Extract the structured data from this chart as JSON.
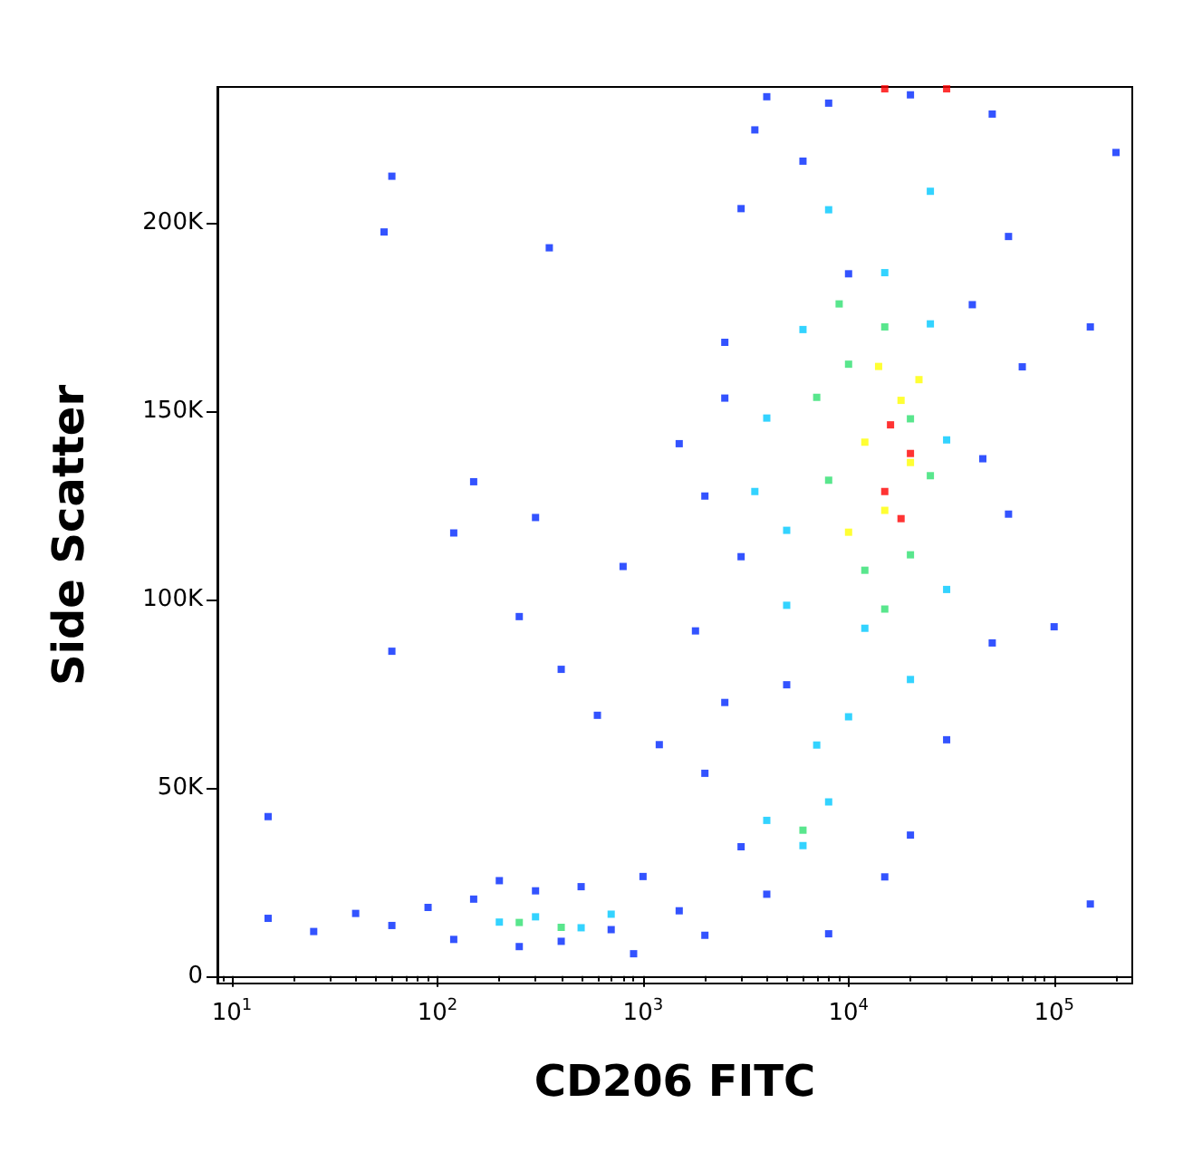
{
  "chart_data": {
    "type": "scatter",
    "xlabel": "CD206 FITC",
    "ylabel": "Side Scatter",
    "log": "x",
    "marker": "square",
    "xlim": [
      8.5,
      240000
    ],
    "xticks": [
      {
        "value": 10,
        "label": "10$^{1}$"
      },
      {
        "value": 100,
        "label": "10$^{2}$"
      },
      {
        "value": 1000,
        "label": "10$^{3}$"
      },
      {
        "value": 10000,
        "label": "10$^{4}$"
      },
      {
        "value": 100000,
        "label": "10$^{5}$"
      }
    ],
    "ylim": [
      -2000,
      236000
    ],
    "yticks": [
      0,
      {
        "value": 50000,
        "label": "50K"
      },
      {
        "value": 100000,
        "label": "100K"
      },
      {
        "value": 150000,
        "label": "150K"
      },
      {
        "value": 200000,
        "label": "200K"
      }
    ],
    "series": [
      {
        "color": "#0028ff",
        "x": [
          15,
          25,
          40,
          60,
          90,
          120,
          150,
          200,
          250,
          300,
          400,
          500,
          700,
          900,
          1000,
          55,
          60,
          120,
          150,
          250,
          300,
          350,
          400,
          600,
          15,
          60,
          800,
          1200,
          1500,
          2000,
          1800,
          2000,
          2500,
          3000,
          3500,
          4000,
          8000,
          20000,
          50000,
          60000,
          70000,
          60000,
          50000,
          30000,
          20000,
          15000,
          8000,
          4000,
          3000,
          2500,
          3000,
          6000,
          40000,
          45000,
          2500,
          5000,
          10000,
          1500,
          2000,
          100000,
          150000,
          150000,
          200000
        ],
        "values": [
          15300,
          11800,
          16600,
          13400,
          18200,
          9700,
          20400,
          25300,
          7800,
          22600,
          9200,
          23700,
          12300,
          5900,
          26400,
          197500,
          212300,
          117600,
          131200,
          95400,
          121700,
          193300,
          81400,
          69200,
          42300,
          86200,
          108700,
          61400,
          141300,
          53800,
          91600,
          127400,
          168200,
          203700,
          224600,
          233400,
          231700,
          233900,
          228800,
          196300,
          161700,
          122600,
          88400,
          62700,
          37400,
          26300,
          11200,
          21700,
          34300,
          72600,
          111300,
          216300,
          178200,
          137300,
          153400,
          77300,
          186400,
          17300,
          10800,
          92700,
          172300,
          19100,
          218600
        ]
      },
      {
        "color": "#00c8ff",
        "x": [
          200,
          300,
          500,
          700,
          4000,
          6000,
          8000,
          5000,
          4000,
          6000,
          8000,
          15000,
          25000,
          30000,
          30000,
          20000,
          10000,
          5000,
          3500,
          25000,
          12000,
          7000
        ],
        "values": [
          14300,
          15700,
          12800,
          16400,
          41300,
          34600,
          46200,
          118300,
          148100,
          171600,
          203400,
          186700,
          173100,
          142300,
          102600,
          78700,
          68800,
          98400,
          128600,
          208300,
          92300,
          61300
        ]
      },
      {
        "color": "#30e070",
        "x": [
          250,
          400,
          6000,
          8000,
          10000,
          15000,
          20000,
          20000,
          12000,
          7000,
          25000,
          9000,
          15000
        ],
        "values": [
          14200,
          12900,
          38700,
          131600,
          162400,
          172300,
          147900,
          111800,
          107700,
          153600,
          132800,
          178400,
          97400
        ]
      },
      {
        "color": "#ffff00",
        "x": [
          12000,
          15000,
          18000,
          20000,
          14000,
          10000,
          22000
        ],
        "values": [
          141700,
          123600,
          152800,
          136300,
          161800,
          117800,
          158300
        ]
      },
      {
        "color": "#ff0000",
        "x": [
          15000,
          18000,
          20000,
          16000,
          30000,
          15000
        ],
        "values": [
          128600,
          121400,
          138700,
          146300,
          235500,
          235500
        ]
      }
    ]
  }
}
